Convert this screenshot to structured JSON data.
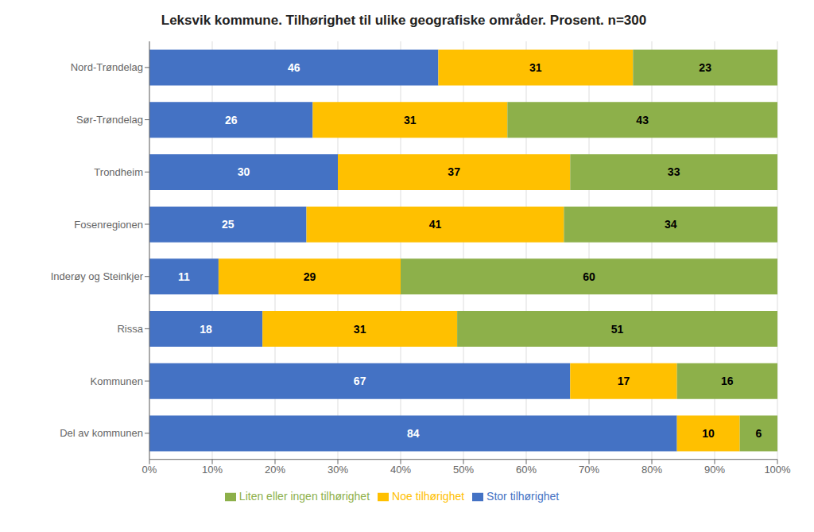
{
  "chart_data": {
    "type": "bar",
    "orientation": "horizontal",
    "stacked": true,
    "title": "Leksvik kommune. Tilhørighet til ulike geografiske områder. Prosent. n=300",
    "categories": [
      "Nord-Trøndelag",
      "Sør-Trøndelag",
      "Trondheim",
      "Fosenregionen",
      "Inderøy og Steinkjer",
      "Rissa",
      "Kommunen",
      "Del av kommunen"
    ],
    "series": [
      {
        "name": "Stor tilhørighet",
        "color": "#4472C4",
        "values": [
          46,
          26,
          30,
          25,
          11,
          18,
          67,
          84
        ]
      },
      {
        "name": "Noe tilhørighet",
        "color": "#FFC000",
        "values": [
          31,
          31,
          37,
          41,
          29,
          31,
          17,
          10
        ]
      },
      {
        "name": "Liten eller ingen tilhørighet",
        "color": "#8DB04A",
        "values": [
          23,
          43,
          33,
          34,
          60,
          51,
          16,
          6
        ]
      }
    ],
    "xlim": [
      0,
      100
    ],
    "xticks": [
      {
        "value": 0,
        "label": "0%"
      },
      {
        "value": 10,
        "label": "10%"
      },
      {
        "value": 20,
        "label": "20%"
      },
      {
        "value": 30,
        "label": "30%"
      },
      {
        "value": 40,
        "label": "40%"
      },
      {
        "value": 50,
        "label": "50%"
      },
      {
        "value": 60,
        "label": "60%"
      },
      {
        "value": 70,
        "label": "70%"
      },
      {
        "value": 80,
        "label": "80%"
      },
      {
        "value": 90,
        "label": "90%"
      },
      {
        "value": 100,
        "label": "100%"
      }
    ],
    "grid": true,
    "legend": "bottom",
    "data_labels": true
  }
}
